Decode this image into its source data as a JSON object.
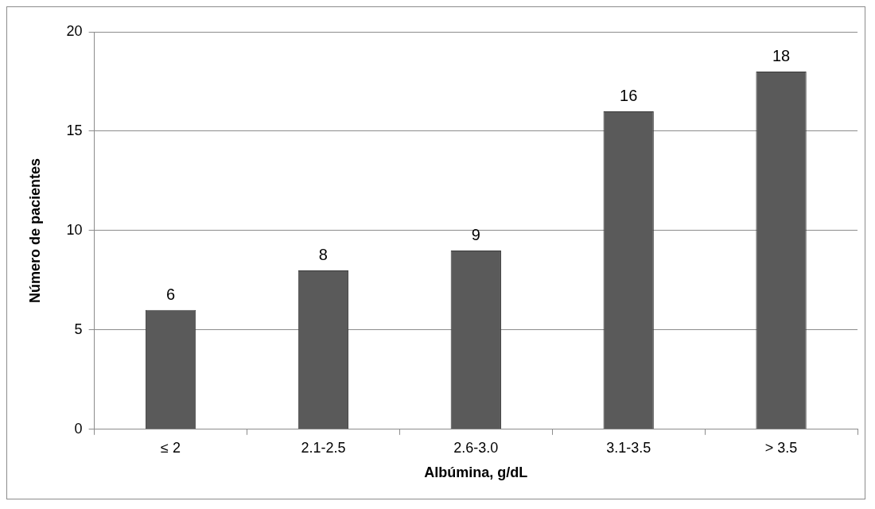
{
  "chart_data": {
    "type": "bar",
    "xlabel": "Albúmina, g/dL",
    "ylabel": "Número de pacientes",
    "categories": [
      "≤ 2",
      "2.1-2.5",
      "2.6-3.0",
      "3.1-3.5",
      "> 3.5"
    ],
    "values": [
      6,
      8,
      9,
      16,
      18
    ],
    "color": "#5a5a5a",
    "ylim": [
      0,
      20
    ],
    "yticks": [
      0,
      5,
      10,
      15,
      20
    ],
    "grid": "y",
    "data_labels": true
  }
}
